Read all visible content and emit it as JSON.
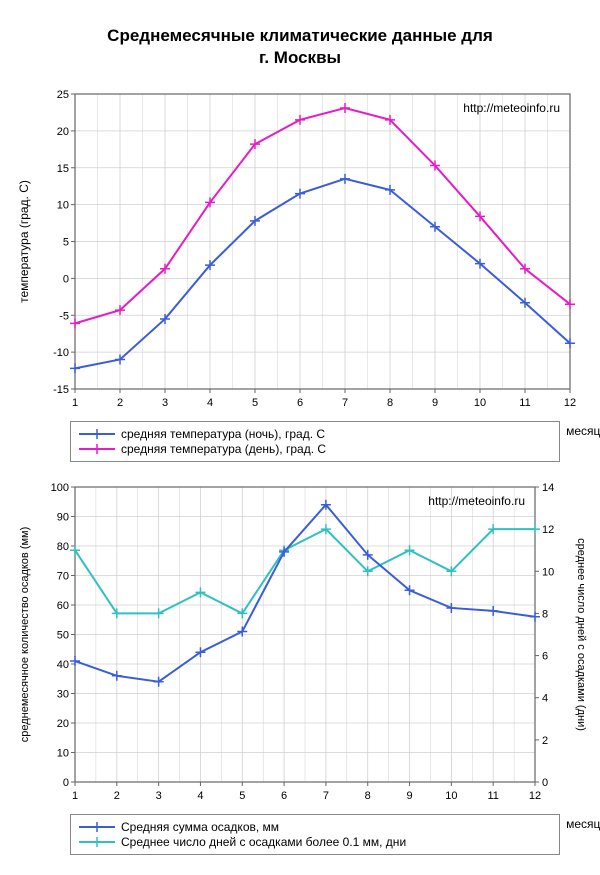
{
  "title_line1": "Среднемесячные климатические данные для",
  "title_line2": "г. Москвы",
  "watermark": "http://meteoinfo.ru",
  "chart1": {
    "type": "line",
    "ylabel": "температура (град. С)",
    "xlabel": "месяцы",
    "x_values": [
      1,
      2,
      3,
      4,
      5,
      6,
      7,
      8,
      9,
      10,
      11,
      12
    ],
    "series": [
      {
        "name": "средняя температура (ночь), град. С",
        "color": "#3a5dd8",
        "marker": "plus",
        "values": [
          -12.2,
          -11.0,
          -5.5,
          1.8,
          7.8,
          11.5,
          13.5,
          12.0,
          7.0,
          2.0,
          -3.3,
          -8.8
        ]
      },
      {
        "name": "средняя температура (день), град. С",
        "color": "#e61cc7",
        "marker": "plus",
        "values": [
          -6.1,
          -4.3,
          1.3,
          10.3,
          18.2,
          21.5,
          23.1,
          21.5,
          15.3,
          8.4,
          1.3,
          -3.5
        ]
      }
    ],
    "ylim": [
      -15,
      25
    ],
    "ytick_step": 5,
    "xlim": [
      1,
      12
    ],
    "xtick_step": 1,
    "background_color": "#ffffff",
    "grid_color": "#d0d0d0",
    "axis_color": "#666666",
    "line_width": 2,
    "marker_size": 5,
    "label_fontsize": 12,
    "tick_fontsize": 11
  },
  "chart2": {
    "type": "line",
    "ylabel_left": "среднемесячное количество осадков (мм)",
    "ylabel_right": "среднее число дней с осадками (дни)",
    "xlabel": "месяцы",
    "x_values": [
      1,
      2,
      3,
      4,
      5,
      6,
      7,
      8,
      9,
      10,
      11,
      12
    ],
    "series_left": {
      "name": "Средняя сумма осадков, мм",
      "color": "#3a5dd8",
      "marker": "plus",
      "values": [
        41,
        36,
        34,
        44,
        51,
        78,
        94,
        77,
        65,
        59,
        58,
        56
      ]
    },
    "series_right": {
      "name": "Среднее число дней с  осадками более 0.1 мм, дни",
      "color": "#30c0c0",
      "marker": "plus",
      "values": [
        11,
        8,
        8,
        9,
        8,
        11,
        12,
        10,
        11,
        10,
        12,
        12
      ]
    },
    "ylim_left": [
      0,
      100
    ],
    "ytick_left_step": 10,
    "ylim_right": [
      0,
      14
    ],
    "ytick_right_step": 2,
    "xlim": [
      1,
      12
    ],
    "xtick_step": 1,
    "background_color": "#ffffff",
    "grid_color": "#d0d0d0",
    "axis_color": "#666666",
    "line_width": 2,
    "marker_size": 5,
    "label_fontsize": 11,
    "tick_fontsize": 11
  }
}
